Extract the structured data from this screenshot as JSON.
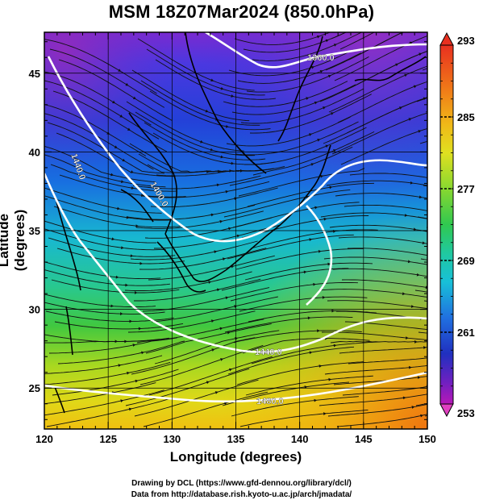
{
  "title": "MSM 18Z07Mar2024 (850.0hPa)",
  "xlabel": "Longitude (degrees)",
  "ylabel": "Latitude  (degrees)",
  "credits": [
    "Drawing by DCL (https://www.gfd-dennou.org/library/dcl/)",
    "Data from http://database.rish.kyoto-u.ac.jp/arch/jmadata/"
  ],
  "chart_data": {
    "type": "heatmap",
    "x_ticks": [
      "120",
      "125",
      "130",
      "135",
      "140",
      "145",
      "150"
    ],
    "y_ticks": [
      "25",
      "30",
      "35",
      "40",
      "45"
    ],
    "xlim": [
      120,
      150
    ],
    "ylim": [
      22.4,
      47.6
    ],
    "colorbar": {
      "labels": [
        "293",
        "285",
        "277",
        "269",
        "261",
        "253"
      ],
      "range": [
        253,
        293
      ]
    },
    "contour_labels": [
      "1360.0",
      "1440.0",
      "1400.0",
      "1480.0"
    ],
    "colors": {
      "purple": "#8a1ab0",
      "blue": "#1a3ed0",
      "cyan": "#18c0d8",
      "green": "#30c850",
      "yellow": "#e8e020",
      "orange": "#f0a010",
      "red": "#e83020"
    }
  }
}
